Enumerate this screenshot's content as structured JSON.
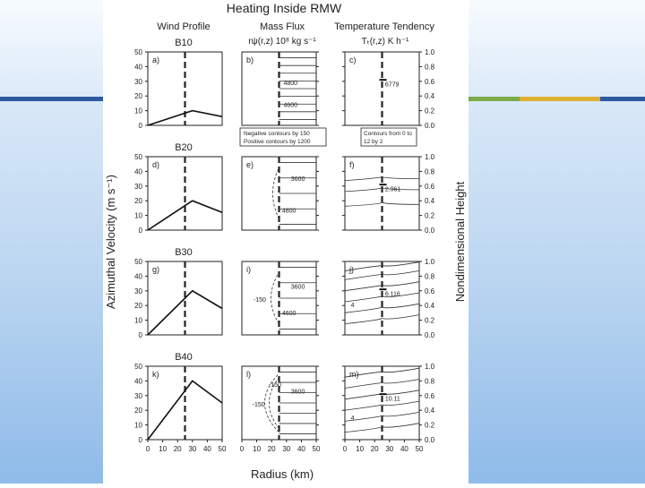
{
  "figure": {
    "title": "Heating Inside RMW",
    "col_headers": [
      "Wind Profile",
      "Mass Flux",
      "Temperature Tendency"
    ],
    "mass_flux_label": "rψ(r,z)  10⁸ kg s⁻¹",
    "temp_label": "Tₜ(r,z)        K h⁻¹",
    "ylabel_left": "Azimuthal Velocity (m s⁻¹)",
    "ylabel_right": "Nondimensional Height",
    "xlabel": "Radius (km)",
    "row_titles": [
      "B10",
      "B20",
      "B30",
      "B40"
    ],
    "panel_letters": [
      [
        "a)",
        "b)",
        "c)"
      ],
      [
        "d)",
        "e)",
        "f)"
      ],
      [
        "g)",
        "i)",
        "j)"
      ],
      [
        "k)",
        "l)",
        "m)"
      ]
    ],
    "legend_b": [
      "Negative contours by 150",
      "Positive contours by 1200"
    ],
    "legend_c": [
      "Contours from 0 to",
      "12 by 2"
    ],
    "annotations": {
      "b_upper": "4800",
      "b_lower": "4600",
      "c_value": "6779",
      "e_upper": "3600",
      "e_lower": "4800",
      "f_value": "2.961",
      "i_upper": "3600",
      "i_lower": "4600",
      "i_neg": "-150",
      "j_value": "6.116",
      "j_low": "4",
      "l_upper": "3600",
      "l_neg1": "-150",
      "l_neg2": "-150",
      "m_value": "10.11",
      "m_low": "4"
    },
    "yticks_left": [
      "0",
      "10",
      "20",
      "30",
      "40",
      "50"
    ],
    "yticks_right": [
      "0.0",
      "0.2",
      "0.4",
      "0.6",
      "0.8",
      "1.0"
    ],
    "xticks": [
      "0",
      "10",
      "20",
      "30",
      "40",
      "50"
    ]
  },
  "chart_data": [
    {
      "type": "line",
      "title": "B10",
      "xlabel": "Radius (km)",
      "ylabel": "Azimuthal Velocity (m s⁻¹)",
      "x": [
        0,
        30,
        50
      ],
      "y": [
        0,
        10,
        6
      ],
      "xlim": [
        0,
        50
      ],
      "ylim": [
        0,
        50
      ],
      "rmw_km": 25
    },
    {
      "type": "line",
      "title": "B20",
      "xlabel": "Radius (km)",
      "ylabel": "Azimuthal Velocity (m s⁻¹)",
      "x": [
        0,
        30,
        50
      ],
      "y": [
        0,
        20,
        12
      ],
      "xlim": [
        0,
        50
      ],
      "ylim": [
        0,
        50
      ],
      "rmw_km": 25
    },
    {
      "type": "line",
      "title": "B30",
      "xlabel": "Radius (km)",
      "ylabel": "Azimuthal Velocity (m s⁻¹)",
      "x": [
        0,
        30,
        50
      ],
      "y": [
        0,
        30,
        18
      ],
      "xlim": [
        0,
        50
      ],
      "ylim": [
        0,
        50
      ],
      "rmw_km": 25
    },
    {
      "type": "line",
      "title": "B40",
      "xlabel": "Radius (km)",
      "ylabel": "Azimuthal Velocity (m s⁻¹)",
      "x": [
        0,
        30,
        50
      ],
      "y": [
        0,
        40,
        25
      ],
      "xlim": [
        0,
        50
      ],
      "ylim": [
        0,
        50
      ],
      "rmw_km": 25
    }
  ]
}
